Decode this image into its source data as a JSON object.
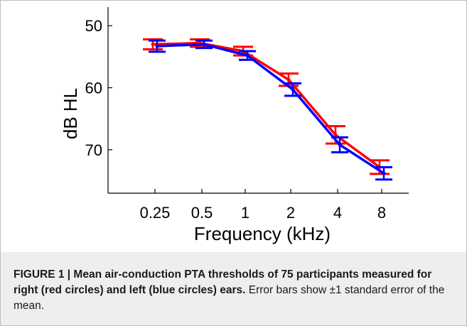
{
  "chart_data": {
    "type": "line",
    "xlabel": "Frequency (kHz)",
    "ylabel": "dB HL",
    "categories": [
      "0.25",
      "0.5",
      "1",
      "2",
      "4",
      "8"
    ],
    "y_ticks": [
      "50",
      "60",
      "70"
    ],
    "ylim": [
      47,
      77
    ],
    "y_inverted": true,
    "grid": false,
    "series": [
      {
        "color": "#ff0000",
        "values": [
          53.0,
          52.8,
          54.1,
          58.7,
          67.6,
          72.8
        ],
        "errors": [
          0.8,
          0.6,
          0.7,
          1.0,
          1.4,
          1.1
        ]
      },
      {
        "color": "#0000ff",
        "values": [
          53.3,
          53.0,
          54.8,
          60.3,
          69.2,
          73.8
        ],
        "errors": [
          0.9,
          0.6,
          0.7,
          1.0,
          1.2,
          1.0
        ]
      }
    ]
  },
  "caption": {
    "bold_text": "FIGURE 1 | Mean air-conduction PTA thresholds of 75 participants measured for right (red circles) and left (blue circles) ears.",
    "plain_text": " Error bars show ±1 standard error of the mean."
  }
}
